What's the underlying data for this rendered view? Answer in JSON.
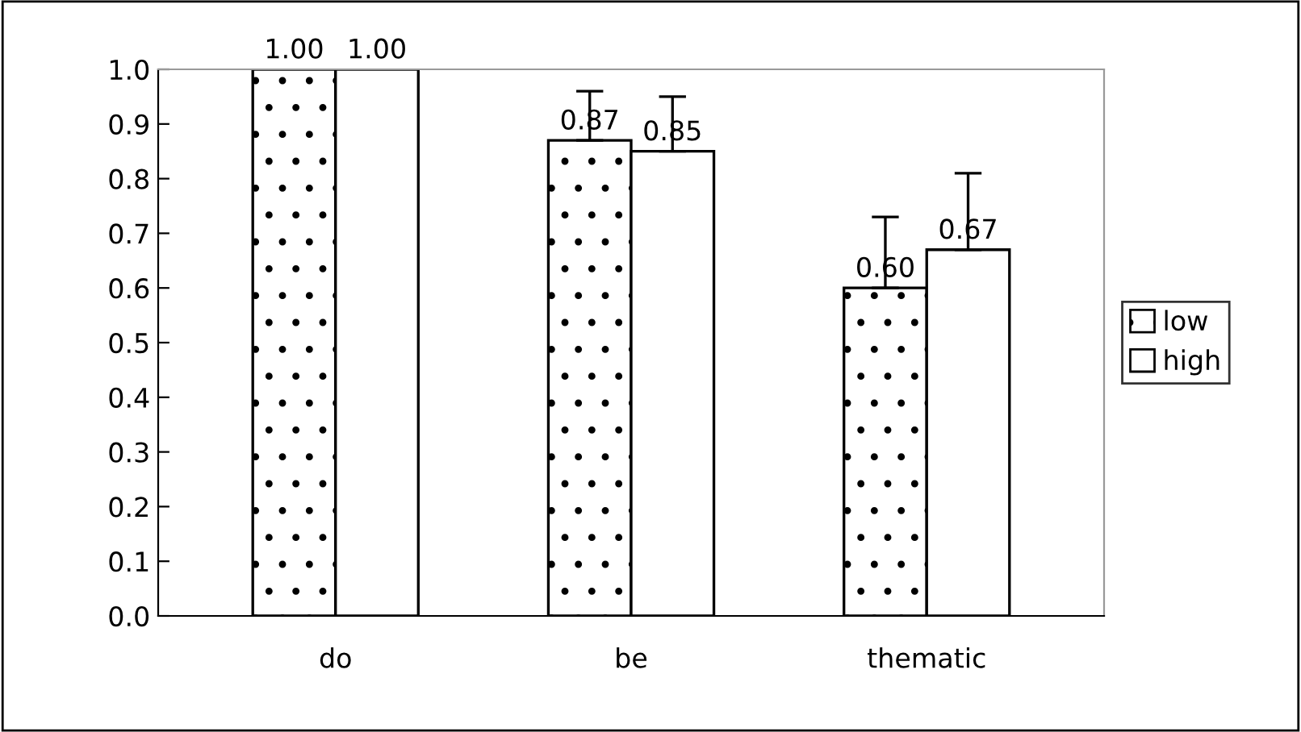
{
  "chart_data": {
    "type": "bar",
    "categories": [
      "do",
      "be",
      "thematic"
    ],
    "series": [
      {
        "name": "low",
        "color": "#ffffff",
        "values": [
          1.0,
          0.87,
          0.6
        ],
        "value_labels": [
          "1.00",
          "0.87",
          "0.60"
        ],
        "errors": [
          null,
          [
            0.87,
            0.96
          ],
          [
            0.6,
            0.73
          ]
        ]
      },
      {
        "name": "high",
        "color": "#ffffff",
        "values": [
          1.0,
          0.85,
          0.67
        ],
        "value_labels": [
          "1.00",
          "0.85",
          "0.67"
        ],
        "errors": [
          null,
          [
            0.85,
            0.95
          ],
          [
            0.67,
            0.81
          ]
        ]
      }
    ],
    "ylim": [
      0,
      1
    ],
    "yticks": [
      {
        "value": 0,
        "label": "0.0"
      },
      {
        "value": 0.1,
        "label": "0.1"
      },
      {
        "value": 0.2,
        "label": "0.2"
      },
      {
        "value": 0.3,
        "label": "0.3"
      },
      {
        "value": 0.4,
        "label": "0.4"
      },
      {
        "value": 0.5,
        "label": "0.5"
      },
      {
        "value": 0.6,
        "label": "0.6"
      },
      {
        "value": 0.7,
        "label": "0.7"
      },
      {
        "value": 0.8,
        "label": "0.8"
      },
      {
        "value": 0.9,
        "label": "0.9"
      },
      {
        "value": 1,
        "label": "1.0"
      }
    ],
    "grid": false,
    "legend": "right"
  }
}
